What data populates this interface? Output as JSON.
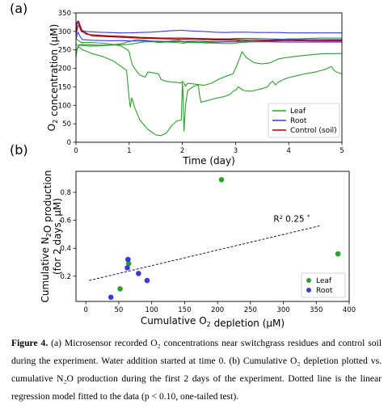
{
  "chart_data": [
    {
      "panel_label": "(a)",
      "type": "line",
      "xlabel": "Time (day)",
      "ylabel": "O2 concentration (µM)",
      "xlim": [
        0,
        5
      ],
      "ylim": [
        0,
        350
      ],
      "xticks": [
        0,
        1,
        2,
        3,
        4,
        5
      ],
      "yticks": [
        0,
        50,
        100,
        150,
        200,
        250,
        300,
        350
      ],
      "grid": false,
      "legend_position": "lower-right",
      "legend": [
        "Leaf",
        "Root",
        "Control (soil)"
      ],
      "colors": {
        "Leaf": "#2ca02c",
        "Root": "#3a3ad8",
        "Control (soil)": "#b00000"
      },
      "series": [
        {
          "legend": "Leaf",
          "x": [
            0,
            0.03,
            0.06,
            0.1,
            0.3,
            0.6,
            0.9,
            0.95,
            1.0,
            1.05,
            1.15,
            1.3,
            1.45,
            1.5,
            1.55,
            1.6,
            1.7,
            1.8,
            1.95,
            2.0,
            2.05,
            2.1,
            2.3,
            2.5,
            2.7,
            2.9,
            3.0,
            3.05,
            3.1,
            3.2,
            3.4,
            3.6,
            3.8,
            4.0,
            4.2,
            4.4,
            4.6,
            4.8,
            5.0
          ],
          "y": [
            265,
            262,
            264,
            262,
            260,
            262,
            268,
            271,
            272,
            274,
            278,
            276,
            273,
            271,
            270,
            270,
            272,
            274,
            276,
            272,
            270,
            272,
            270,
            270,
            271,
            272,
            272,
            274,
            276,
            275,
            277,
            276,
            278,
            280,
            280,
            281,
            282,
            282,
            282
          ]
        },
        {
          "legend": "Leaf",
          "x": [
            0,
            0.02,
            0.06,
            0.1,
            0.4,
            0.7,
            1.0,
            1.3,
            1.6,
            1.9,
            2.0,
            2.1,
            2.4,
            2.7,
            2.9,
            3.0,
            3.1,
            3.3,
            3.6,
            3.9,
            4.2,
            4.5,
            4.8,
            5.0
          ],
          "y": [
            230,
            250,
            262,
            265,
            263,
            263,
            265,
            272,
            272,
            270,
            268,
            270,
            269,
            268,
            267,
            268,
            270,
            272,
            273,
            275,
            277,
            278,
            277,
            276
          ]
        },
        {
          "legend": "Leaf",
          "x": [
            0,
            0.03,
            0.08,
            0.12,
            0.2,
            0.3,
            0.5,
            0.7,
            0.85,
            0.95,
            1.0,
            1.02,
            1.05,
            1.1,
            1.2,
            1.35,
            1.5,
            1.6,
            1.7,
            1.8,
            1.9,
            1.98,
            2.0,
            2.01,
            2.03,
            2.06,
            2.1,
            2.2,
            2.3,
            2.32,
            2.35,
            2.45,
            2.6,
            2.8,
            2.9,
            2.97,
            3.0,
            3.05,
            3.15,
            3.3,
            3.5,
            3.6,
            3.65,
            3.7,
            3.75,
            3.8,
            3.9,
            4.0,
            4.15,
            4.3,
            4.5,
            4.7,
            4.8,
            4.85,
            4.9,
            5.0
          ],
          "y": [
            240,
            258,
            256,
            250,
            246,
            240,
            232,
            220,
            205,
            195,
            120,
            95,
            120,
            95,
            60,
            35,
            20,
            18,
            25,
            45,
            58,
            60,
            160,
            140,
            30,
            100,
            140,
            150,
            155,
            130,
            108,
            112,
            118,
            124,
            130,
            140,
            140,
            150,
            140,
            138,
            145,
            150,
            160,
            165,
            155,
            162,
            170,
            175,
            180,
            185,
            190,
            198,
            205,
            195,
            190,
            185
          ]
        },
        {
          "legend": "Leaf",
          "x": [
            0,
            0.05,
            0.1,
            0.3,
            0.5,
            0.7,
            0.85,
            0.95,
            1.0,
            1.03,
            1.06,
            1.1,
            1.15,
            1.2,
            1.3,
            1.35,
            1.45,
            1.55,
            1.6,
            1.7,
            1.8,
            1.9,
            1.97,
            2.0,
            2.03,
            2.06,
            2.1,
            2.25,
            2.4,
            2.55,
            2.7,
            2.85,
            2.95,
            3.0,
            3.03,
            3.07,
            3.12,
            3.2,
            3.35,
            3.5,
            3.65,
            3.8,
            3.9,
            4.0,
            4.1,
            4.3,
            4.5,
            4.7,
            4.9,
            5.0
          ],
          "y": [
            280,
            275,
            270,
            270,
            268,
            265,
            260,
            252,
            245,
            225,
            210,
            200,
            190,
            182,
            176,
            190,
            188,
            185,
            170,
            165,
            163,
            162,
            160,
            165,
            160,
            152,
            160,
            157,
            154,
            160,
            172,
            180,
            185,
            200,
            210,
            225,
            245,
            230,
            215,
            212,
            215,
            225,
            228,
            230,
            232,
            235,
            238,
            240,
            240,
            240
          ]
        },
        {
          "legend": "Root",
          "x": [
            0,
            0.02,
            0.04,
            0.06,
            0.08,
            0.12,
            0.2,
            0.4,
            0.6,
            0.8,
            1.0,
            1.2,
            1.4,
            1.6,
            1.8,
            2.0,
            2.2,
            2.4,
            2.6,
            2.8,
            3.0,
            3.2,
            3.4,
            3.6,
            3.8,
            4.0,
            4.2,
            4.4,
            4.6,
            4.8,
            5.0
          ],
          "y": [
            300,
            320,
            325,
            318,
            305,
            302,
            300,
            298,
            297,
            296,
            296,
            297,
            298,
            300,
            302,
            303,
            301,
            300,
            298,
            297,
            298,
            298,
            297,
            297,
            297,
            296,
            296,
            296,
            296,
            296,
            296
          ]
        },
        {
          "legend": "Root",
          "x": [
            0,
            0.03,
            0.06,
            0.1,
            0.3,
            0.6,
            0.9,
            1.0,
            1.3,
            1.6,
            1.9,
            2.0,
            2.3,
            2.6,
            2.9,
            3.0,
            3.3,
            3.6,
            3.9,
            4.2,
            4.5,
            4.8,
            5.0
          ],
          "y": [
            290,
            312,
            320,
            302,
            288,
            286,
            284,
            283,
            282,
            281,
            282,
            282,
            281,
            280,
            280,
            281,
            281,
            280,
            279,
            278,
            278,
            278,
            278
          ]
        },
        {
          "legend": "Root",
          "x": [
            0,
            0.04,
            0.08,
            0.12,
            0.3,
            0.6,
            0.9,
            1.0,
            1.3,
            1.6,
            1.9,
            2.0,
            2.3,
            2.6,
            2.9,
            3.0,
            3.3,
            3.6,
            3.9,
            4.2,
            4.5,
            4.8,
            5.0
          ],
          "y": [
            280,
            298,
            285,
            278,
            276,
            275,
            275,
            274,
            274,
            273,
            273,
            273,
            273,
            272,
            272,
            272,
            272,
            272,
            271,
            271,
            271,
            271,
            271
          ]
        },
        {
          "legend": "Control (soil)",
          "x": [
            0,
            0.02,
            0.05,
            0.08,
            0.12,
            0.2,
            0.4,
            0.6,
            0.8,
            1.0,
            1.2,
            1.4,
            1.6,
            1.8,
            2.0,
            2.2,
            2.4,
            2.6,
            2.8,
            3.0,
            3.2,
            3.4,
            3.6,
            3.8,
            4.0,
            4.2,
            4.4,
            4.6,
            4.8,
            5.0
          ],
          "y": [
            300,
            326,
            328,
            315,
            300,
            292,
            290,
            288,
            287,
            286,
            284,
            283,
            282,
            282,
            282,
            281,
            280,
            279,
            278,
            278,
            277,
            277,
            276,
            276,
            276,
            275,
            275,
            275,
            275,
            275
          ]
        },
        {
          "legend": "Control (soil)",
          "x": [
            0,
            0.03,
            0.06,
            0.1,
            0.3,
            0.6,
            0.9,
            1.0,
            1.3,
            1.6,
            1.9,
            2.0,
            2.3,
            2.6,
            2.9,
            3.0,
            3.3,
            3.6,
            3.9,
            4.2,
            4.5,
            4.8,
            5.0
          ],
          "y": [
            290,
            312,
            318,
            300,
            288,
            286,
            284,
            283,
            281,
            280,
            279,
            279,
            278,
            277,
            276,
            276,
            276,
            275,
            275,
            275,
            274,
            274,
            274
          ]
        }
      ]
    },
    {
      "panel_label": "(b)",
      "type": "scatter",
      "xlabel": "Cumulative O2 depletion (µM)",
      "ylabel": "Cumulative N2O production (for 2 days, µM)",
      "xlim": [
        -15,
        400
      ],
      "ylim": [
        0.02,
        0.95
      ],
      "xticks": [
        0,
        50,
        100,
        150,
        200,
        250,
        300,
        350,
        400
      ],
      "yticks": [
        0.2,
        0.4,
        0.6,
        0.8
      ],
      "ytick_labels": [
        "0.2",
        "0.4",
        "0.6",
        "0.8"
      ],
      "grid": false,
      "legend_position": "lower-right",
      "legend": [
        "Leaf",
        "Root"
      ],
      "colors": {
        "Leaf": "#2ca02c",
        "Root": "#3a3ad8"
      },
      "series": [
        {
          "legend": "Leaf",
          "points": [
            [
              52,
              0.11
            ],
            [
              65,
              0.29
            ],
            [
              206,
              0.89
            ],
            [
              383,
              0.36
            ]
          ]
        },
        {
          "legend": "Root",
          "points": [
            [
              38,
              0.05
            ],
            [
              64,
              0.32
            ],
            [
              63,
              0.26
            ],
            [
              80,
              0.22
            ],
            [
              93,
              0.17
            ]
          ]
        }
      ],
      "fit_line": {
        "style": "dotted",
        "color": "#000000",
        "x": [
          5,
          355
        ],
        "y": [
          0.17,
          0.56
        ]
      },
      "annotation": {
        "text": "R² 0.25 ",
        "superscript": "*",
        "x": 285,
        "y": 0.59
      }
    }
  ],
  "caption": {
    "bold": "Figure 4.",
    "text": " (a) Microsensor recorded O₂ concentrations near switchgrass residues and control soil during the experiment. Water addition started at time 0. (b) Cumulative O₂ depletion plotted vs. cumulative N₂O production during the first 2 days of the experiment. Dotted line is the linear regression model fitted to the data (p < 0.10, one-tailed test)."
  }
}
